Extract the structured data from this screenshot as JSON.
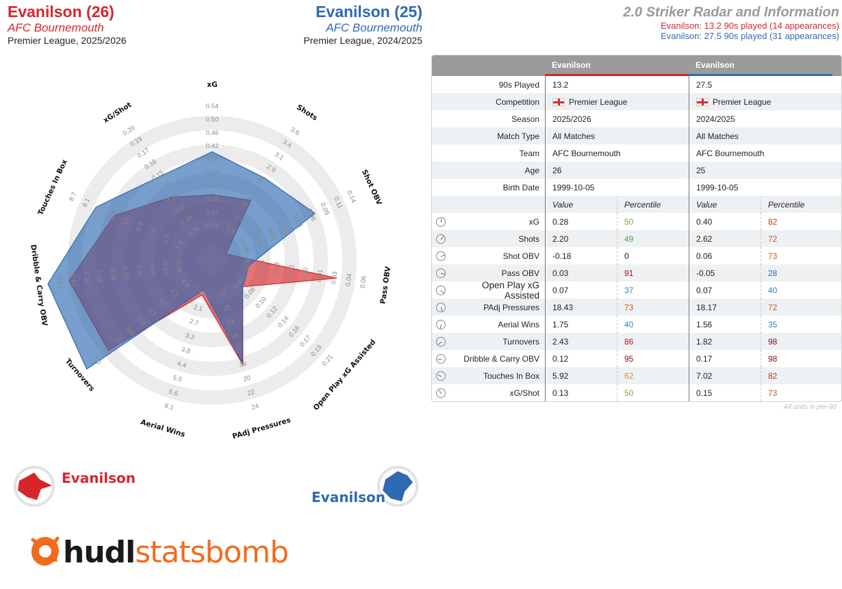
{
  "header": {
    "player1": {
      "name": "Evanilson (26)",
      "club": "AFC Bournemouth",
      "competition": "Premier League, 2025/2026"
    },
    "player2": {
      "name": "Evanilson (25)",
      "club": "AFC Bournemouth",
      "competition": "Premier League, 2024/2025"
    },
    "title": "2.0 Striker Radar and Information",
    "line1": "Evanilson: 13.2 90s played (14 appearances)",
    "line2": "Evanilson: 27.5 90s played (31 appearances)"
  },
  "colors": {
    "player1": "#d7262b",
    "player2": "#2e6ab1",
    "overlap": "#6a5fa0",
    "ring": "#ececec"
  },
  "legend": {
    "player1": "Evanilson",
    "player2": "Evanilson"
  },
  "logo": {
    "part1": "hudl",
    "part2": "statsbomb"
  },
  "chart_data": {
    "type": "radar",
    "axes": [
      {
        "name": "xG",
        "ticks": [
          "0.18",
          "0.22",
          "0.26",
          "0.30",
          "0.34",
          "0.38",
          "0.42",
          "0.46",
          "0.50",
          "0.54"
        ],
        "min": 0.14,
        "max": 0.54
      },
      {
        "name": "Shots",
        "ticks": [
          "1.6",
          "1.9",
          "2.2",
          "2.5",
          "2.7",
          "2.9",
          "3.1",
          "3.4",
          "3.6"
        ],
        "min": 1.3,
        "max": 3.6
      },
      {
        "name": "Shot OBV",
        "ticks": [
          "-0.08",
          "-0.05",
          "-0.03",
          "0.00",
          "0.03",
          "0.06",
          "0.09",
          "0.11",
          "0.14"
        ],
        "min": -0.11,
        "max": 0.14
      },
      {
        "name": "Pass OBV",
        "ticks": [
          "-0.06",
          "-0.05",
          "-0.03",
          "-0.01",
          "0.00",
          "0.01",
          "0.03",
          "0.04",
          "0.06"
        ],
        "min": -0.07,
        "max": 0.06
      },
      {
        "name": "Open Play xG Assisted",
        "ticks": [
          "0.06",
          "0.08",
          "0.10",
          "0.12",
          "0.14",
          "0.16",
          "0.17",
          "0.19",
          "0.21"
        ],
        "min": 0.04,
        "max": 0.21
      },
      {
        "name": "PAdj Pressures",
        "ticks": [
          "10",
          "12",
          "14",
          "16",
          "17",
          "19",
          "20",
          "22",
          "24"
        ],
        "min": 8,
        "max": 24
      },
      {
        "name": "Aerial Wins",
        "ticks": [
          "1.6",
          "2.1",
          "2.7",
          "3.3",
          "3.8",
          "4.4",
          "5.0",
          "5.6",
          "6.1"
        ],
        "min": 1.0,
        "max": 6.1
      },
      {
        "name": "Turnovers",
        "ticks": [
          "4.6",
          "4.3",
          "4.0",
          "3.6",
          "3.3",
          "3.0",
          "2.7",
          "2.3",
          "2.0"
        ],
        "min": 4.9,
        "max": 2.0
      },
      {
        "name": "Dribble & Carry OBV",
        "ticks": [
          "-0.04",
          "-0.02",
          "0.00",
          "0.02",
          "0.04",
          "0.06",
          "0.08",
          "0.10",
          "0.12",
          "0.14"
        ],
        "min": -0.06,
        "max": 0.14
      },
      {
        "name": "Touches In Box",
        "ticks": [
          "1.9",
          "2.9",
          "3.9",
          "4.9",
          "5.5",
          "6.5",
          "7.1",
          "8.1",
          "8.7"
        ],
        "min": 0.9,
        "max": 8.7
      },
      {
        "name": "xG/Shot",
        "ticks": [
          "0.09",
          "0.10",
          "0.11",
          "0.12",
          "0.14",
          "0.15",
          "0.16",
          "0.17",
          "0.19",
          "0.20"
        ],
        "min": 0.08,
        "max": 0.2
      }
    ],
    "series": [
      {
        "name": "Evanilson",
        "values": [
          0.28,
          2.2,
          -0.18,
          0.03,
          0.07,
          18.43,
          1.75,
          2.43,
          0.12,
          5.92,
          0.13
        ]
      },
      {
        "name": "Evanilson",
        "values": [
          0.4,
          2.62,
          0.06,
          -0.05,
          0.07,
          18.17,
          1.56,
          1.82,
          0.17,
          7.02,
          0.15
        ]
      }
    ]
  },
  "table": {
    "col1": "Evanilson",
    "col2": "Evanilson",
    "info": [
      {
        "label": "90s Played",
        "v1": "13.2",
        "v2": "27.5"
      },
      {
        "label": "Competition",
        "v1": "Premier League",
        "v2": "Premier League",
        "flag": true
      },
      {
        "label": "Season",
        "v1": "2025/2026",
        "v2": "2024/2025"
      },
      {
        "label": "Match Type",
        "v1": "All Matches",
        "v2": "All Matches"
      },
      {
        "label": "Team",
        "v1": "AFC Bournemouth",
        "v2": "AFC Bournemouth"
      },
      {
        "label": "Age",
        "v1": "26",
        "v2": "25"
      },
      {
        "label": "Birth Date",
        "v1": "1999-10-05",
        "v2": "1999-10-05"
      }
    ],
    "value_header": "Value",
    "pct_header": "Percentile",
    "metrics": [
      {
        "label": "xG",
        "v1": "0.28",
        "p1": "50",
        "c1": "#7fa34a",
        "v2": "0.40",
        "p2": "82",
        "c2": "#b8360f"
      },
      {
        "label": "Shots",
        "v1": "2.20",
        "p1": "49",
        "c1": "#5da04a",
        "v2": "2.62",
        "p2": "72",
        "c2": "#c8541c"
      },
      {
        "label": "Shot OBV",
        "v1": "-0.18",
        "p1": "0",
        "c1": "#222222",
        "v2": "0.06",
        "p2": "73",
        "c2": "#c8541c"
      },
      {
        "label": "Pass OBV",
        "v1": "0.03",
        "p1": "91",
        "c1": "#9c1212",
        "v2": "-0.05",
        "p2": "28",
        "c2": "#2c6db0"
      },
      {
        "label": "Open Play xG Assisted",
        "v1": "0.07",
        "p1": "37",
        "c1": "#2f86b4",
        "v2": "0.07",
        "p2": "40",
        "c2": "#2f86b4",
        "big": true
      },
      {
        "label": "PAdj Pressures",
        "v1": "18.43",
        "p1": "73",
        "c1": "#c8541c",
        "v2": "18.17",
        "p2": "72",
        "c2": "#c8541c"
      },
      {
        "label": "Aerial Wins",
        "v1": "1.75",
        "p1": "40",
        "c1": "#2f86b4",
        "v2": "1.56",
        "p2": "35",
        "c2": "#2f86b4"
      },
      {
        "label": "Turnovers",
        "v1": "2.43",
        "p1": "86",
        "c1": "#a8220f",
        "v2": "1.82",
        "p2": "98",
        "c2": "#7a0f0f"
      },
      {
        "label": "Dribble & Carry OBV",
        "v1": "0.12",
        "p1": "95",
        "c1": "#7a0f0f",
        "v2": "0.17",
        "p2": "98",
        "c2": "#7a0f0f"
      },
      {
        "label": "Touches In Box",
        "v1": "5.92",
        "p1": "62",
        "c1": "#d4931c",
        "v2": "7.02",
        "p2": "82",
        "c2": "#b8360f"
      },
      {
        "label": "xG/Shot",
        "v1": "0.13",
        "p1": "50",
        "c1": "#7fa34a",
        "v2": "0.15",
        "p2": "73",
        "c2": "#c8541c"
      }
    ],
    "footnote": "All units in per-90"
  }
}
